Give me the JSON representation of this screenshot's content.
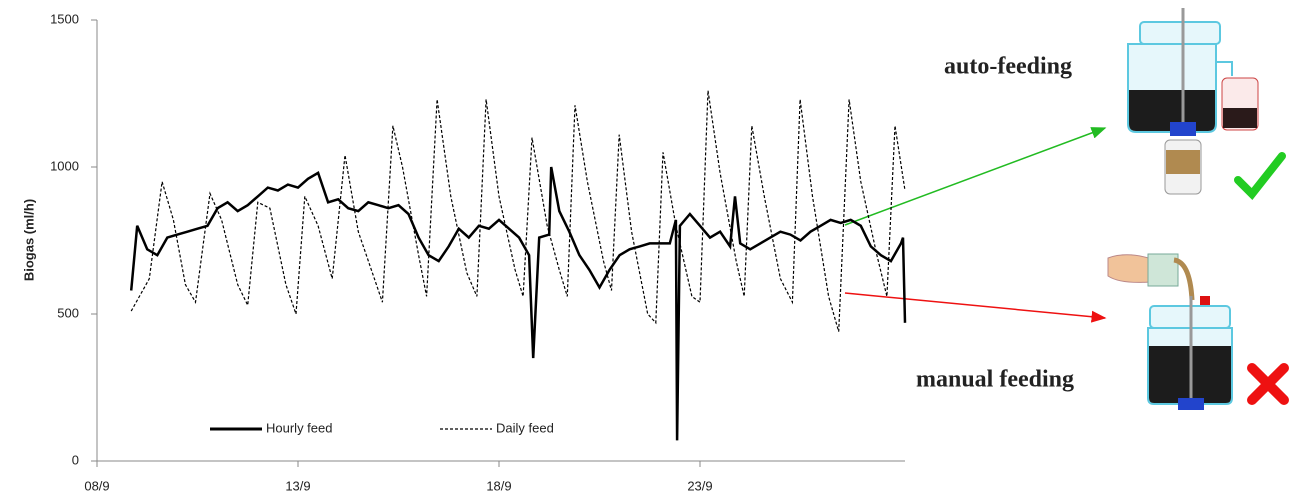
{
  "chart_data": {
    "type": "line",
    "y_label": "Biogas (ml/h)",
    "xlim": [
      8,
      28.1
    ],
    "xticks": [
      {
        "value": 8,
        "label": "08/9"
      },
      {
        "value": 13,
        "label": "13/9"
      },
      {
        "value": 18,
        "label": "18/9"
      },
      {
        "value": 23,
        "label": "23/9"
      }
    ],
    "ylim": [
      0,
      1500
    ],
    "yticks": [
      0,
      500,
      1000,
      1500
    ],
    "grid": false,
    "legend": "bottom",
    "series": [
      {
        "name": "Hourly feed",
        "color": "#000000",
        "style": "solid",
        "x": [
          8.85,
          9,
          9.25,
          9.5,
          9.75,
          10,
          10.25,
          10.5,
          10.75,
          11,
          11.25,
          11.5,
          11.75,
          12,
          12.25,
          12.5,
          12.75,
          13,
          13.25,
          13.5,
          13.75,
          14,
          14.25,
          14.5,
          14.75,
          15,
          15.25,
          15.5,
          15.75,
          16,
          16.25,
          16.5,
          16.75,
          17,
          17.25,
          17.5,
          17.75,
          18,
          18.25,
          18.5,
          18.75,
          18.85,
          19,
          19.25,
          19.3,
          19.5,
          19.75,
          20,
          20.25,
          20.5,
          20.75,
          21,
          21.25,
          21.5,
          21.75,
          22,
          22.25,
          22.4,
          22.43,
          22.5,
          22.75,
          23,
          23.25,
          23.5,
          23.75,
          23.87,
          24,
          24.25,
          24.5,
          24.75,
          25,
          25.25,
          25.5,
          25.75,
          26,
          26.25,
          26.5,
          26.75,
          27,
          27.25,
          27.5,
          27.75,
          28,
          28.05,
          28.1
        ],
        "values": [
          580,
          800,
          720,
          700,
          760,
          770,
          780,
          790,
          800,
          860,
          880,
          850,
          870,
          900,
          930,
          920,
          940,
          930,
          960,
          980,
          880,
          890,
          860,
          850,
          880,
          870,
          860,
          870,
          840,
          760,
          700,
          680,
          730,
          790,
          760,
          800,
          790,
          820,
          790,
          760,
          700,
          350,
          760,
          770,
          1000,
          850,
          780,
          700,
          650,
          590,
          650,
          700,
          720,
          730,
          740,
          740,
          740,
          820,
          70,
          800,
          840,
          800,
          760,
          780,
          730,
          900,
          740,
          720,
          740,
          760,
          780,
          770,
          750,
          780,
          800,
          820,
          810,
          820,
          800,
          730,
          700,
          680,
          740,
          760,
          470
        ]
      },
      {
        "name": "Daily feed",
        "color": "#000000",
        "style": "dashed",
        "x": [
          8.85,
          9.3,
          9.62,
          9.9,
          10.2,
          10.45,
          10.81,
          11.1,
          11.5,
          11.75,
          12.0,
          12.3,
          12.7,
          12.95,
          13.17,
          13.5,
          13.85,
          14.17,
          14.5,
          14.9,
          15.1,
          15.36,
          15.6,
          16.0,
          16.2,
          16.46,
          16.8,
          17.2,
          17.45,
          17.68,
          18.0,
          18.4,
          18.6,
          18.82,
          19.2,
          19.5,
          19.7,
          19.89,
          20.2,
          20.6,
          20.8,
          20.99,
          21.3,
          21.7,
          21.9,
          22.08,
          22.4,
          22.8,
          23.0,
          23.2,
          23.5,
          23.9,
          24.1,
          24.29,
          24.6,
          25.0,
          25.3,
          25.49,
          25.8,
          26.2,
          26.45,
          26.71,
          27.0,
          27.4,
          27.65,
          27.85,
          28.1
        ],
        "values": [
          510,
          620,
          950,
          820,
          600,
          540,
          910,
          820,
          600,
          530,
          880,
          860,
          600,
          500,
          900,
          800,
          620,
          1040,
          780,
          620,
          540,
          1140,
          1000,
          700,
          560,
          1230,
          900,
          640,
          560,
          1230,
          900,
          650,
          560,
          1100,
          800,
          650,
          560,
          1210,
          950,
          680,
          580,
          1110,
          780,
          500,
          470,
          1050,
          800,
          560,
          540,
          1260,
          980,
          680,
          560,
          1140,
          900,
          620,
          540,
          1230,
          900,
          560,
          440,
          1230,
          950,
          700,
          560,
          1140,
          920
        ]
      }
    ]
  },
  "annotations": [
    {
      "text": "auto-feeding",
      "color": "#22bb22"
    },
    {
      "text": "manual feeding",
      "color": "#ee1111"
    }
  ]
}
